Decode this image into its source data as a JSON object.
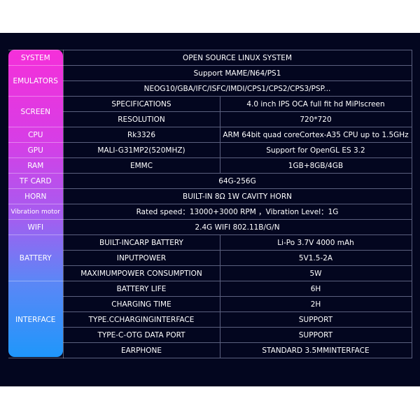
{
  "colors": {
    "background": "#03061f",
    "label_gradient_top": "#f52fd9",
    "label_gradient_bottom": "#1f97fb",
    "grid": "#5b607e"
  },
  "rows": {
    "system": {
      "label": "SYSTEM",
      "value": "OPEN SOURCE LINUX SYSTEM"
    },
    "emulators": {
      "label": "EMULATORS",
      "values": [
        "Support MAME/N64/PS1",
        "NEOG10/GBA/IFC/ISFC/IMDI/CPS1/CPS2/CPS3/PSP..."
      ]
    },
    "screen": {
      "label": "SCREEN",
      "items": [
        {
          "name": "SPECIFICATIONS",
          "value": "4.0 inch IPS OCA full fit hd MiPlscreen"
        },
        {
          "name": "RESOLUTION",
          "value": "720*720"
        }
      ]
    },
    "cpu": {
      "label": "CPU",
      "name": "Rk3326",
      "value": "ARM 64bit quad coreCortex-A35 CPU up to 1.5GHz"
    },
    "gpu": {
      "label": "GPU",
      "name": "MALI-G31MP2(520MHZ)",
      "value": "Support for OpenGL ES 3.2"
    },
    "ram": {
      "label": "RAM",
      "name": "EMMC",
      "value": "1GB+8GB/4GB"
    },
    "tf_card": {
      "label": "TF CARD",
      "value": "64G-256G"
    },
    "horn": {
      "label": "HORN",
      "value": "BUILT-IN 8Ω 1W CAVITY HORN"
    },
    "vibration": {
      "label": "Vibration motor",
      "value": "Rated speed：13000+3000 RPM  ，Vibration Level：1G"
    },
    "wifi": {
      "label": "WIFI",
      "value": "2.4G WIFI 802.11B/G/N"
    },
    "battery": {
      "label": "BATTERY",
      "items": [
        {
          "name": "BUILT-INCARP BATTERY",
          "value": "Li-Po 3.7V 4000 mAh"
        },
        {
          "name": "INPUTPOWER",
          "value": "5V1.5-2A"
        },
        {
          "name": "MAXIMUMPOWER CONSUMPTION",
          "value": "5W"
        }
      ]
    },
    "interface": {
      "label": "INTERFACE",
      "items": [
        {
          "name": "BATTERY LIFE",
          "value": "6H"
        },
        {
          "name": "CHARGING TIME",
          "value": "2H"
        },
        {
          "name": "TYPE.CCHARGINGINTERFACE",
          "value": "SUPPORT"
        },
        {
          "name": "TYPE-C-OTG DATA PORT",
          "value": "SUPPORT"
        },
        {
          "name": "EARPHONE",
          "value": "STANDARD 3.5MMINTERFACE"
        }
      ]
    }
  }
}
